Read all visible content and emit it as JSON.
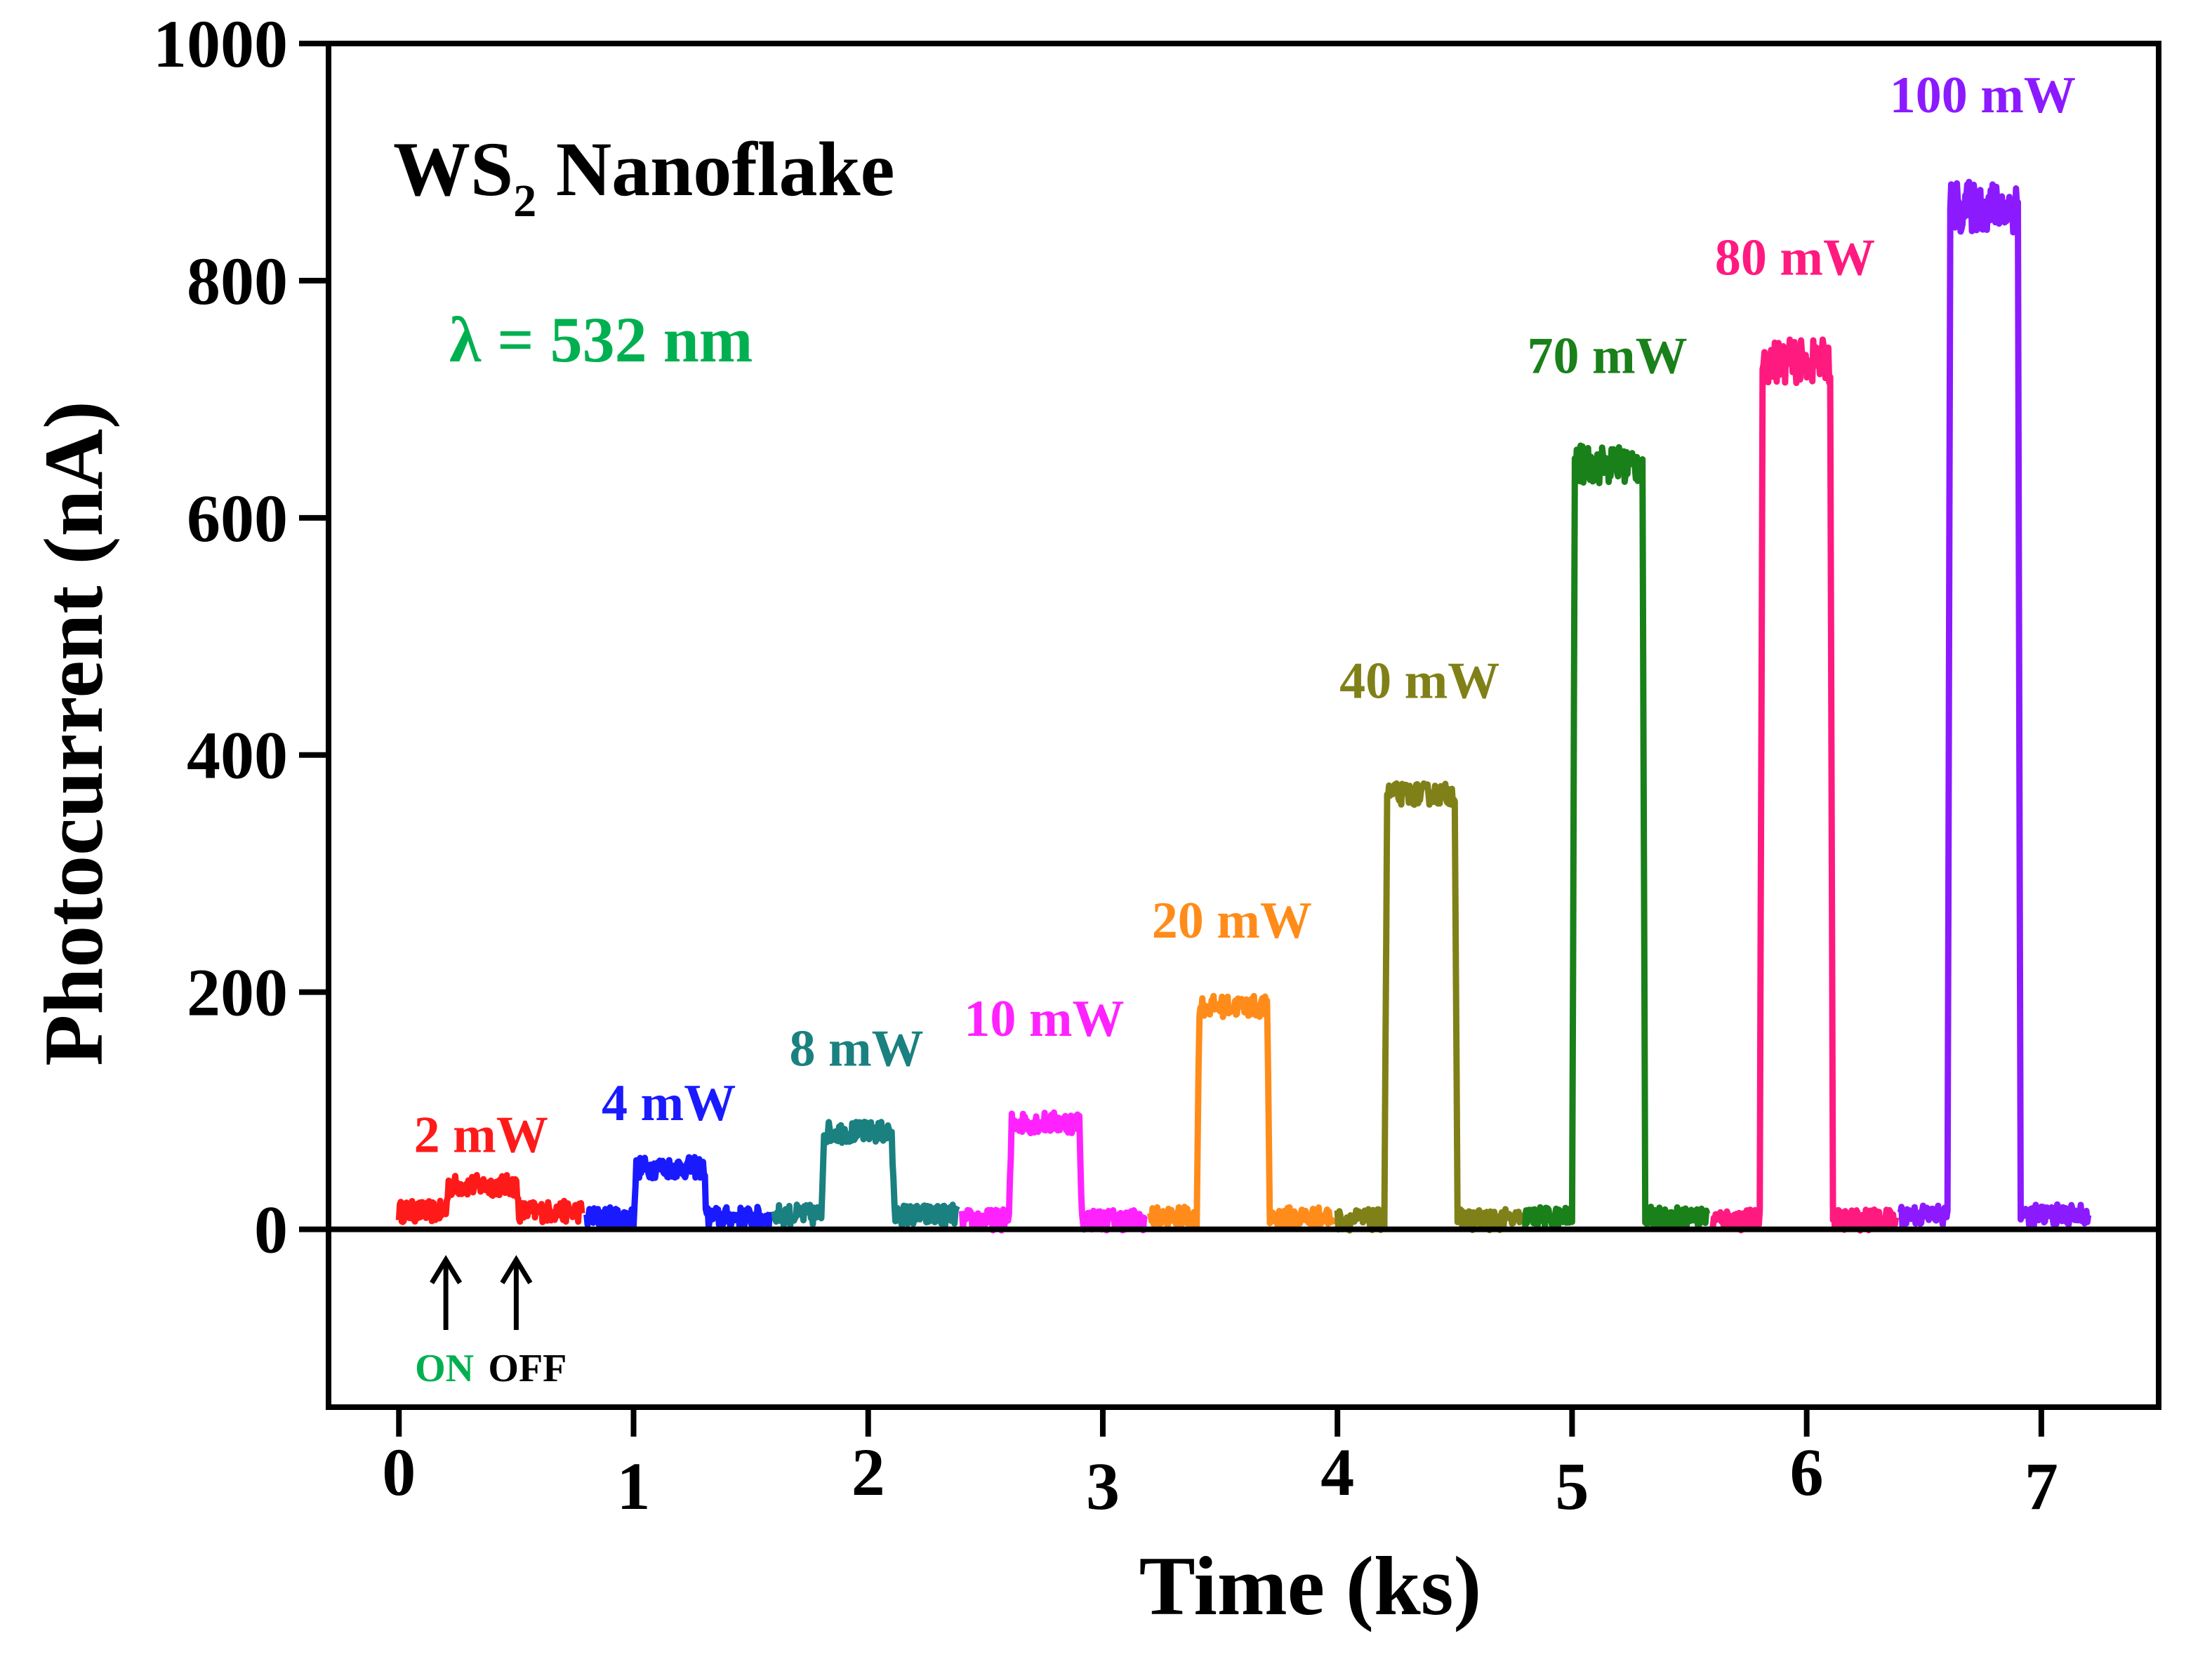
{
  "chart_data": {
    "type": "line",
    "title": "WS2 Nanoflake",
    "title_main": "WS",
    "title_subscript": "2",
    "title_rest": "Nanoflake",
    "wavelength_label": "λ = 532 nm",
    "xlabel": "Time (ks)",
    "ylabel": "Photocurrent (nA)",
    "xlim": [
      -0.3,
      7.5
    ],
    "ylim": [
      -150,
      1000
    ],
    "xticks": [
      0,
      1,
      2,
      3,
      4,
      5,
      6,
      7
    ],
    "xtick_labels": [
      "0",
      "1",
      "2",
      "3",
      "4",
      "5",
      "6",
      "7"
    ],
    "yticks": [
      0,
      200,
      400,
      600,
      800,
      1000
    ],
    "ytick_labels": [
      "0",
      "200",
      "400",
      "600",
      "800",
      "1000"
    ],
    "zero_line": true,
    "annotations": {
      "on_label": "ON",
      "off_label": "OFF",
      "on_time": 0.2,
      "off_time": 0.5
    },
    "series": [
      {
        "name": "2 mW",
        "color": "#ff1a1a",
        "t_start": 0.0,
        "t_on": 0.2,
        "t_off": 0.5,
        "t_end": 0.78,
        "baseline": 15,
        "on_value": 37
      },
      {
        "name": "4 mW",
        "color": "#1a1aff",
        "t_start": 0.8,
        "t_on": 1.0,
        "t_off": 1.3,
        "t_end": 1.58,
        "baseline": 10,
        "on_value": 52
      },
      {
        "name": "8 mW",
        "color": "#1a8080",
        "t_start": 1.6,
        "t_on": 1.8,
        "t_off": 2.1,
        "t_end": 2.38,
        "baseline": 12,
        "on_value": 82
      },
      {
        "name": "10 mW",
        "color": "#ff22ff",
        "t_start": 2.4,
        "t_on": 2.6,
        "t_off": 2.9,
        "t_end": 3.18,
        "baseline": 8,
        "on_value": 90
      },
      {
        "name": "20 mW",
        "color": "#ff8c1a",
        "t_start": 3.2,
        "t_on": 3.4,
        "t_off": 3.7,
        "t_end": 3.98,
        "baseline": 10,
        "on_value": 188
      },
      {
        "name": "40 mW",
        "color": "#808018",
        "t_start": 4.0,
        "t_on": 4.2,
        "t_off": 4.5,
        "t_end": 4.78,
        "baseline": 8,
        "on_value": 367
      },
      {
        "name": "70 mW",
        "color": "#1a801a",
        "t_start": 4.8,
        "t_on": 5.0,
        "t_off": 5.3,
        "t_end": 5.58,
        "baseline": 10,
        "on_value": 645
      },
      {
        "name": "80 mW",
        "color": "#ff1a80",
        "t_start": 5.6,
        "t_on": 5.8,
        "t_off": 6.1,
        "t_end": 6.38,
        "baseline": 8,
        "on_value": 732
      },
      {
        "name": "100 mW",
        "color": "#8c1aff",
        "t_start": 6.4,
        "t_on": 6.6,
        "t_off": 6.9,
        "t_end": 7.2,
        "baseline": 12,
        "on_value": 862
      }
    ],
    "series_label_values": [
      65,
      92,
      138,
      163,
      246,
      448,
      722,
      805,
      942
    ],
    "colors": {
      "axis": "#000000",
      "wavelength": "#00b050",
      "on_label": "#00b050",
      "off_label": "#000000"
    }
  }
}
